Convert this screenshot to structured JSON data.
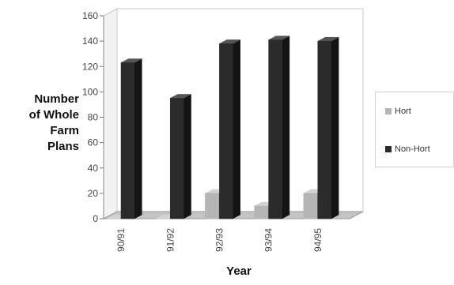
{
  "chart_data": {
    "type": "bar",
    "title": "",
    "xlabel": "Year",
    "ylabel_lines": [
      "Number",
      "of Whole",
      "Farm",
      "Plans"
    ],
    "categories": [
      "90/91",
      "91/92",
      "92/93",
      "93/94",
      "94/95"
    ],
    "series": [
      {
        "name": "Hort",
        "values": [
          0,
          0,
          20,
          10,
          20
        ],
        "color": "#b5b5b5"
      },
      {
        "name": "Non-Hort",
        "values": [
          123,
          95,
          138,
          141,
          140
        ],
        "color": "#2b2b2b"
      }
    ],
    "ylim": [
      0,
      160
    ],
    "yticks": [
      0,
      20,
      40,
      60,
      80,
      100,
      120,
      140,
      160
    ],
    "grid": false,
    "style": "3d",
    "legend_position": "right"
  }
}
